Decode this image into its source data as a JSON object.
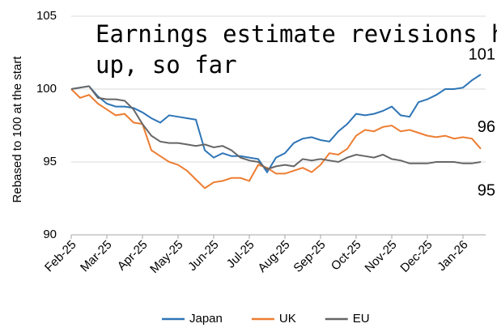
{
  "chart_data": {
    "type": "line",
    "title": "Earnings estimate revisions holding up, so far",
    "y_label": "Rebased to 100 at the start",
    "categories": [
      "Feb-25",
      null,
      null,
      null,
      "Mar-25",
      null,
      null,
      null,
      "Apr-25",
      null,
      null,
      null,
      "May-25",
      null,
      null,
      null,
      "Jun-25",
      null,
      null,
      null,
      "Jul-25",
      null,
      null,
      null,
      "Aug-25",
      null,
      null,
      null,
      "Sep-25",
      null,
      null,
      null,
      "Oct-25",
      null,
      null,
      null,
      "Nov-25",
      null,
      null,
      null,
      "Dec-25",
      null,
      null,
      null,
      "Jan-26",
      null,
      null
    ],
    "series": [
      {
        "name": "Japan",
        "color": "#2e75b6",
        "values": [
          100,
          100.1,
          100.2,
          99.5,
          99.0,
          98.8,
          98.8,
          98.7,
          98.4,
          98.0,
          97.7,
          98.2,
          98.1,
          98.0,
          97.9,
          95.8,
          95.3,
          95.6,
          95.4,
          95.4,
          95.3,
          95.2,
          94.3,
          95.3,
          95.6,
          96.3,
          96.6,
          96.7,
          96.5,
          96.4,
          97.1,
          97.6,
          98.3,
          98.2,
          98.3,
          98.5,
          98.8,
          98.2,
          98.1,
          99.1,
          99.3,
          99.6,
          100.0,
          100.0,
          100.1,
          100.6,
          101.0
        ]
      },
      {
        "name": "UK",
        "color": "#ed7d31",
        "values": [
          100,
          99.4,
          99.6,
          99.0,
          98.6,
          98.2,
          98.3,
          97.7,
          97.6,
          95.8,
          95.4,
          95.0,
          94.8,
          94.4,
          93.8,
          93.2,
          93.6,
          93.7,
          93.9,
          93.9,
          93.7,
          94.8,
          94.6,
          94.2,
          94.2,
          94.4,
          94.6,
          94.3,
          94.8,
          95.6,
          95.5,
          95.9,
          96.8,
          97.2,
          97.1,
          97.4,
          97.5,
          97.1,
          97.2,
          97.0,
          96.8,
          96.7,
          96.8,
          96.6,
          96.7,
          96.6,
          95.9
        ]
      },
      {
        "name": "EU",
        "color": "#666666",
        "values": [
          100,
          100.1,
          100.2,
          99.4,
          99.3,
          99.3,
          99.2,
          98.6,
          97.6,
          96.8,
          96.4,
          96.3,
          96.3,
          96.2,
          96.1,
          96.2,
          96.0,
          96.1,
          95.8,
          95.3,
          95.1,
          95.0,
          94.5,
          94.7,
          94.8,
          94.7,
          95.2,
          95.1,
          95.2,
          95.1,
          95.0,
          95.3,
          95.5,
          95.4,
          95.3,
          95.5,
          95.2,
          95.1,
          94.9,
          94.9,
          94.9,
          95.0,
          95.0,
          95.0,
          94.9,
          94.9,
          95.0
        ]
      }
    ],
    "annotations": [
      {
        "text": "101",
        "color": "#2e75b6"
      },
      {
        "text": "96",
        "color": "#ed7d31"
      },
      {
        "text": "95",
        "color": "#595959"
      }
    ],
    "ylim": [
      90,
      105
    ],
    "yticks": [
      90,
      95,
      100,
      105
    ],
    "grid": true,
    "legend": "bottom"
  }
}
